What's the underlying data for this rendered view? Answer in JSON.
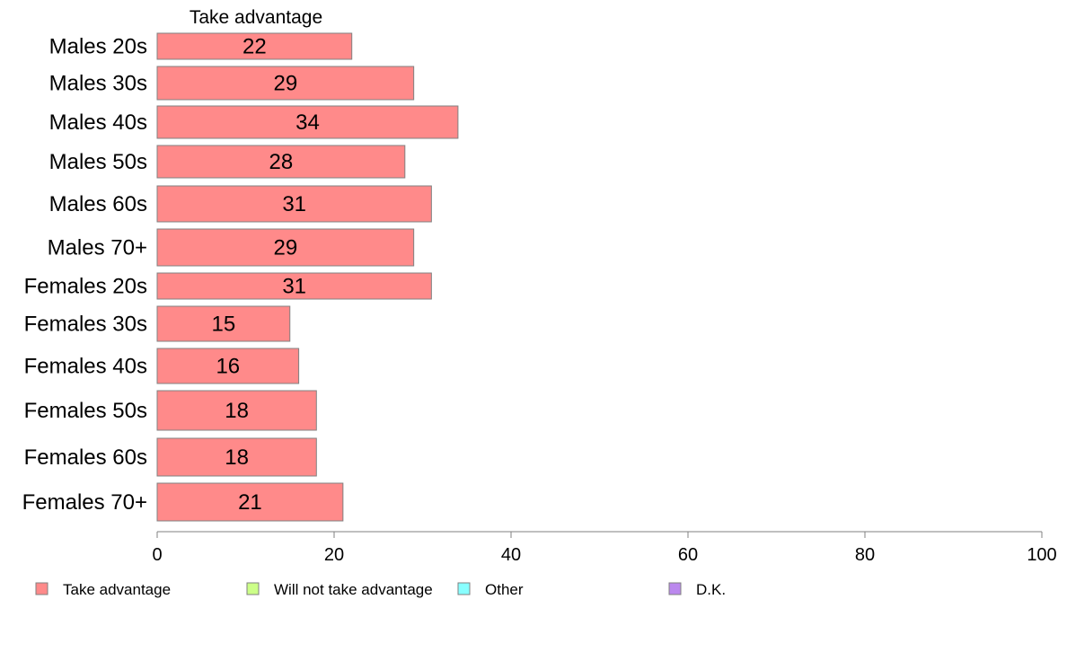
{
  "chart_data": {
    "type": "bar",
    "orientation": "horizontal",
    "title": "Take advantage",
    "categories": [
      "Males 20s",
      "Males 30s",
      "Males 40s",
      "Males 50s",
      "Males 60s",
      "Males 70+",
      "Females 20s",
      "Females 30s",
      "Females 40s",
      "Females 50s",
      "Females 60s",
      "Females 70+"
    ],
    "series": [
      {
        "name": "Take advantage",
        "color": "#ff8a8a",
        "values": [
          22,
          29,
          34,
          28,
          31,
          29,
          31,
          15,
          16,
          18,
          18,
          21
        ],
        "labels": [
          "22",
          "29",
          "34",
          "28",
          "31",
          "29",
          "31",
          "15",
          "16",
          "18",
          "18",
          "21"
        ]
      }
    ],
    "xlim": [
      0,
      100
    ],
    "x_ticks": [
      0,
      20,
      40,
      60,
      80,
      100
    ],
    "x_tick_labels": [
      "0",
      "20",
      "40",
      "60",
      "80",
      "100"
    ],
    "grid": false,
    "legend_position": "bottom",
    "legend": [
      {
        "label": "Take advantage",
        "color": "#ff8a8a"
      },
      {
        "label": "Will not take advantage",
        "color": "#ccff88"
      },
      {
        "label": "Other",
        "color": "#88ffff"
      },
      {
        "label": "D.K.",
        "color": "#bb88ee"
      }
    ]
  }
}
